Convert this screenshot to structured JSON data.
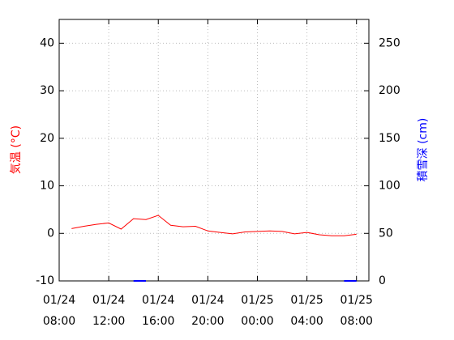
{
  "chart_data": {
    "type": "line",
    "x": [
      "01/24 09:00",
      "01/24 10:00",
      "01/24 11:00",
      "01/24 12:00",
      "01/24 13:00",
      "01/24 14:00",
      "01/24 15:00",
      "01/24 16:00",
      "01/24 17:00",
      "01/24 18:00",
      "01/24 19:00",
      "01/24 20:00",
      "01/24 21:00",
      "01/24 22:00",
      "01/24 23:00",
      "01/25 00:00",
      "01/25 01:00",
      "01/25 02:00",
      "01/25 03:00",
      "01/25 04:00",
      "01/25 05:00",
      "01/25 06:00",
      "01/25 07:00",
      "01/25 08:00"
    ],
    "series": [
      {
        "name": "気温 (°C)",
        "color": "#ff0000",
        "axis": "y",
        "values": [
          1.0,
          1.5,
          1.9,
          2.2,
          0.9,
          3.1,
          2.9,
          3.8,
          1.7,
          1.4,
          1.5,
          0.5,
          0.2,
          -0.1,
          0.3,
          0.4,
          0.5,
          0.4,
          -0.1,
          0.2,
          -0.3,
          -0.5,
          -0.5,
          -0.2
        ]
      },
      {
        "name": "積雪深 (cm)",
        "color": "#0000ff",
        "axis": "y2",
        "values": [
          null,
          null,
          null,
          null,
          null,
          0,
          0,
          null,
          null,
          null,
          null,
          null,
          null,
          null,
          null,
          null,
          null,
          null,
          null,
          null,
          null,
          null,
          0,
          0
        ]
      }
    ],
    "xlim": [
      "01/24 08:00",
      "01/25 09:00"
    ],
    "xticks": [
      {
        "value": "01/24 08:00",
        "label": [
          "01/24",
          "08:00"
        ]
      },
      {
        "value": "01/24 12:00",
        "label": [
          "01/24",
          "12:00"
        ]
      },
      {
        "value": "01/24 16:00",
        "label": [
          "01/24",
          "16:00"
        ]
      },
      {
        "value": "01/24 20:00",
        "label": [
          "01/24",
          "20:00"
        ]
      },
      {
        "value": "01/25 00:00",
        "label": [
          "01/25",
          "00:00"
        ]
      },
      {
        "value": "01/25 04:00",
        "label": [
          "01/25",
          "04:00"
        ]
      },
      {
        "value": "01/25 08:00",
        "label": [
          "01/25",
          "08:00"
        ]
      }
    ],
    "ylim": [
      -10,
      45
    ],
    "yticks": [
      -10,
      0,
      10,
      20,
      30,
      40
    ],
    "y2lim": [
      0,
      275
    ],
    "y2ticks": [
      0,
      50,
      100,
      150,
      200,
      250
    ],
    "grid": true
  }
}
